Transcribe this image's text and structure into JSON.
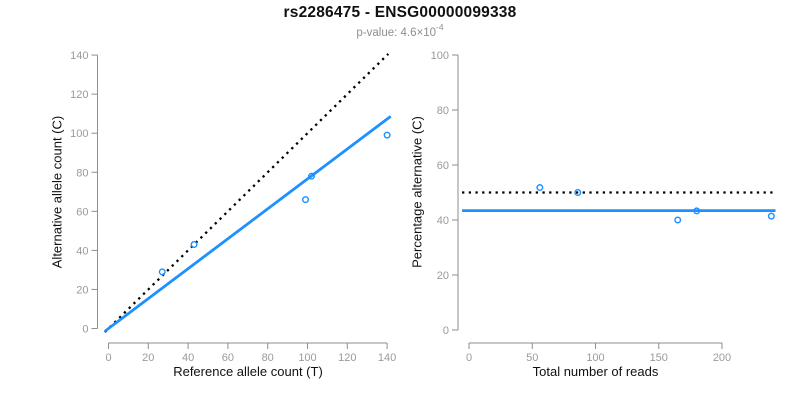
{
  "figure": {
    "title": "rs2286475 - ENSG00000099338",
    "subtitle": {
      "prefix": "p-value: 4.6×10",
      "exponent": "-4"
    }
  },
  "colors": {
    "accent_blue": "#1E90FF",
    "line_black": "#000000",
    "axis_gray": "#8e8e8e",
    "tick_label_gray": "#9a9a9a",
    "text_black": "#111111"
  },
  "chart_data": [
    {
      "type": "scatter",
      "panel": "left",
      "xlabel": "Reference allele count (T)",
      "ylabel": "Alternative allele count (C)",
      "xlim": [
        0,
        140
      ],
      "ylim": [
        0,
        140
      ],
      "xticks": [
        0,
        20,
        40,
        60,
        80,
        100,
        120,
        140
      ],
      "yticks": [
        0,
        20,
        40,
        60,
        80,
        100,
        120,
        140
      ],
      "grid": false,
      "legend": "none",
      "points": [
        [
          27,
          29
        ],
        [
          43,
          43
        ],
        [
          99,
          66
        ],
        [
          102,
          78
        ],
        [
          140,
          99
        ]
      ],
      "lines": [
        {
          "name": "identity-line",
          "type": "abline",
          "intercept": 0,
          "slope": 1,
          "style": "dotted",
          "color": "#000000"
        },
        {
          "name": "fit-line",
          "type": "abline",
          "intercept": 0,
          "slope": 0.766,
          "style": "solid",
          "color": "#1E90FF"
        }
      ]
    },
    {
      "type": "scatter",
      "panel": "right",
      "xlabel": "Total number of reads",
      "ylabel": "Percentage alternative (C)",
      "xlim": [
        0,
        239
      ],
      "ylim": [
        0,
        100
      ],
      "xticks": [
        0,
        50,
        100,
        150,
        200
      ],
      "yticks": [
        0,
        20,
        40,
        60,
        80,
        100
      ],
      "grid": false,
      "legend": "none",
      "points": [
        [
          56,
          51.8
        ],
        [
          86,
          50
        ],
        [
          165,
          40
        ],
        [
          180,
          43.3
        ],
        [
          239,
          41.4
        ]
      ],
      "lines": [
        {
          "name": "expected-line",
          "type": "hline",
          "y": 50,
          "style": "dotted",
          "color": "#000000"
        },
        {
          "name": "fit-line",
          "type": "hline",
          "y": 43.4,
          "style": "solid",
          "color": "#1E90FF"
        }
      ]
    }
  ]
}
